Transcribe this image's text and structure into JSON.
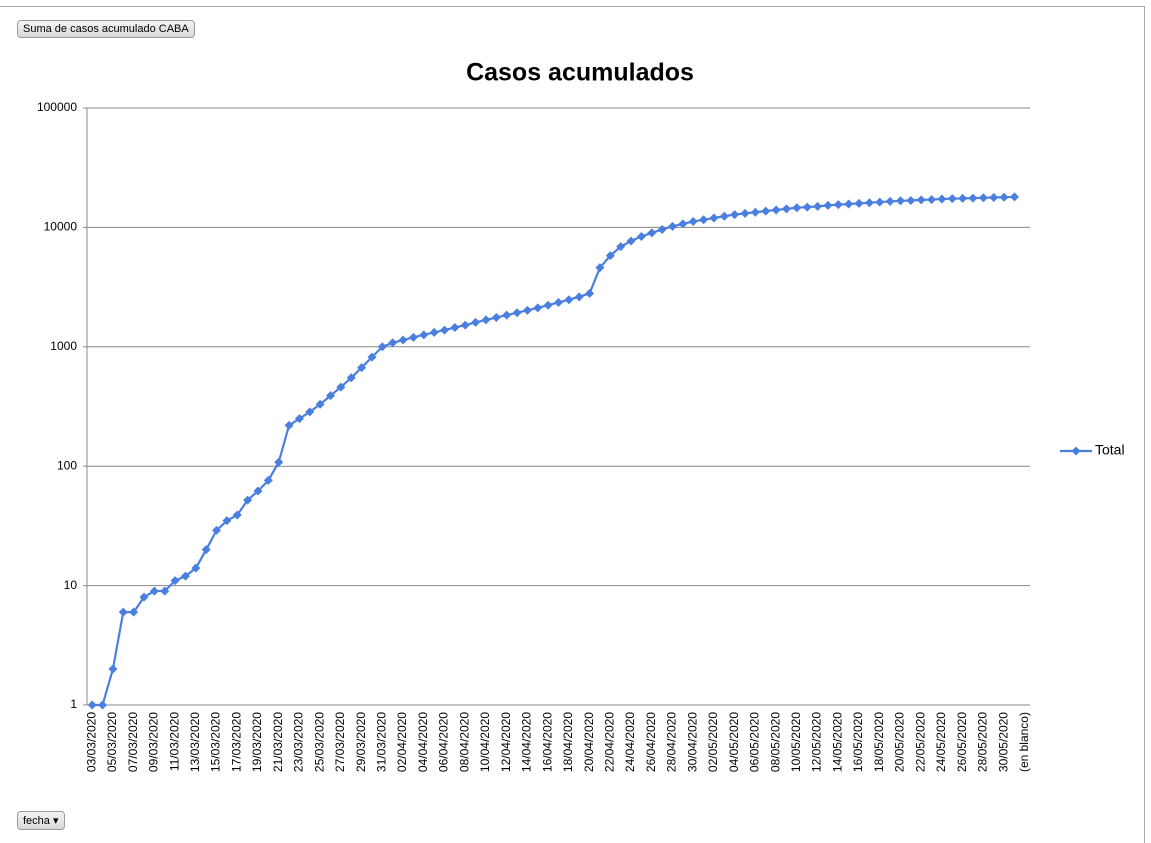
{
  "field_button": "Suma de casos acumulado CABA",
  "axis_button": "fecha",
  "chart_data": {
    "type": "line",
    "title": "Casos acumulados",
    "log_scale": true,
    "grid": true,
    "legend": "right",
    "categories": [
      "03/03/2020",
      null,
      "05/03/2020",
      null,
      "07/03/2020",
      null,
      "09/03/2020",
      null,
      "11/03/2020",
      null,
      "13/03/2020",
      null,
      "15/03/2020",
      null,
      "17/03/2020",
      null,
      "19/03/2020",
      null,
      "21/03/2020",
      null,
      "23/03/2020",
      null,
      "25/03/2020",
      null,
      "27/03/2020",
      null,
      "29/03/2020",
      null,
      "31/03/2020",
      null,
      "02/04/2020",
      null,
      "04/04/2020",
      null,
      "06/04/2020",
      null,
      "08/04/2020",
      null,
      "10/04/2020",
      null,
      "12/04/2020",
      null,
      "14/04/2020",
      null,
      "16/04/2020",
      null,
      "18/04/2020",
      null,
      "20/04/2020",
      null,
      "22/04/2020",
      null,
      "24/04/2020",
      null,
      "26/04/2020",
      null,
      "28/04/2020",
      null,
      "30/04/2020",
      null,
      "02/05/2020",
      null,
      "04/05/2020",
      null,
      "06/05/2020",
      null,
      "08/05/2020",
      null,
      "10/05/2020",
      null,
      "12/05/2020",
      null,
      "14/05/2020",
      null,
      "16/05/2020",
      null,
      "18/05/2020",
      null,
      "20/05/2020",
      null,
      "22/05/2020",
      null,
      "24/05/2020",
      null,
      "26/05/2020",
      null,
      "28/05/2020",
      null,
      "30/05/2020",
      null,
      "(en blanco)"
    ],
    "series": [
      {
        "name": "Total",
        "color": "#4a7fe0",
        "values": [
          1,
          1,
          2,
          6,
          6,
          8,
          9,
          9,
          11,
          12,
          14,
          20,
          29,
          35,
          39,
          52,
          62,
          76,
          108,
          220,
          250,
          285,
          330,
          390,
          460,
          550,
          670,
          820,
          1000,
          1080,
          1140,
          1200,
          1260,
          1320,
          1380,
          1450,
          1520,
          1600,
          1680,
          1760,
          1840,
          1930,
          2020,
          2120,
          2230,
          2350,
          2480,
          2620,
          2800,
          4600,
          5800,
          6900,
          7700,
          8400,
          9000,
          9600,
          10200,
          10700,
          11200,
          11600,
          12000,
          12400,
          12800,
          13100,
          13400,
          13700,
          14000,
          14300,
          14600,
          14800,
          15000,
          15300,
          15500,
          15700,
          15900,
          16100,
          16300,
          16500,
          16700,
          16800,
          17000,
          17100,
          17300,
          17400,
          17500,
          17600,
          17700,
          17800,
          17900,
          18000,
          null
        ]
      }
    ],
    "ylim": [
      1,
      100000
    ],
    "yticks": [
      1,
      10,
      100,
      1000,
      10000,
      100000
    ]
  }
}
